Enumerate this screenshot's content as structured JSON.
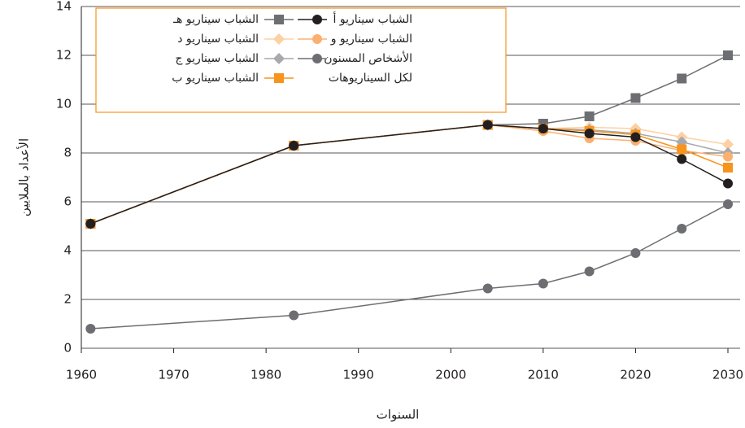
{
  "chart_data": {
    "type": "line",
    "y_label": "الأعداد بالملايين",
    "x_label": "السنوات",
    "x": [
      1961,
      1983,
      2004,
      2010,
      2015,
      2020,
      2025,
      2030
    ],
    "xlim": [
      1960,
      2030
    ],
    "xticks": [
      1960,
      1970,
      1980,
      1990,
      2000,
      2010,
      2020,
      2030
    ],
    "ylim": [
      0,
      14
    ],
    "yticks": [
      0,
      2,
      4,
      6,
      8,
      10,
      12,
      14
    ],
    "grid": true,
    "series": [
      {
        "name": "الأشخاص المسنون لكل السيناريوهات",
        "color": "#6d6e71",
        "marker": "circle",
        "values": [
          0.8,
          1.35,
          2.45,
          2.65,
          3.15,
          3.9,
          4.9,
          5.9
        ]
      },
      {
        "name": "الشباب سيناريو هـ",
        "color": "#6d6e71",
        "marker": "square",
        "values": [
          5.1,
          8.3,
          9.15,
          9.2,
          9.5,
          10.25,
          11.05,
          12.0
        ]
      },
      {
        "name": "الشباب سيناريو د",
        "color": "#fdd0a2",
        "marker": "diamond",
        "values": [
          5.1,
          8.3,
          9.15,
          9.0,
          9.05,
          9.0,
          8.65,
          8.35
        ]
      },
      {
        "name": "الشباب سيناريو ج",
        "color": "#a7a9ac",
        "marker": "diamond",
        "values": [
          5.1,
          8.3,
          9.15,
          9.0,
          8.95,
          8.8,
          8.45,
          8.0
        ]
      },
      {
        "name": "الشباب سيناريو و",
        "color": "#fbb070",
        "marker": "circle",
        "values": [
          5.1,
          8.3,
          9.15,
          8.9,
          8.6,
          8.5,
          8.1,
          7.85
        ]
      },
      {
        "name": "الشباب سيناريو ب",
        "color": "#f7941d",
        "marker": "square",
        "values": [
          5.1,
          8.3,
          9.15,
          9.0,
          8.9,
          8.75,
          8.15,
          7.4
        ]
      },
      {
        "name": "الشباب سيناريو أ",
        "color": "#231f20",
        "marker": "circle",
        "values": [
          5.1,
          8.3,
          9.15,
          9.0,
          8.8,
          8.65,
          7.75,
          6.75
        ]
      }
    ]
  }
}
